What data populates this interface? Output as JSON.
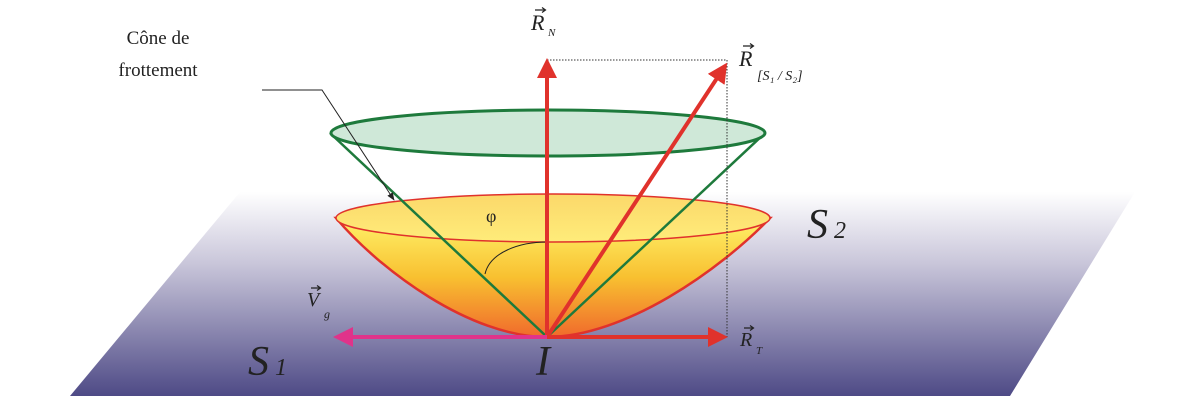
{
  "labels": {
    "cone_label_line1": "Cône de",
    "cone_label_line2": "frottement",
    "normal_force": "R",
    "normal_force_sub": "N",
    "resultant_force": "R",
    "resultant_force_sub": "[S₁ / S₂]",
    "tangential_force": "R",
    "tangential_force_sub": "T",
    "velocity": "V",
    "velocity_sub": "g",
    "angle": "φ",
    "solid_1": "S",
    "solid_1_sub": "1",
    "solid_2": "S",
    "solid_2_sub": "2",
    "contact_point": "I"
  },
  "colors": {
    "force_arrows": "#e0322c",
    "velocity_arrow": "#e0338a",
    "friction_cone": "#1e7a3c",
    "cone_fill": "#cfe8d8",
    "plane_bottom": "#4e4a86",
    "bowl_top": "#ffe84a",
    "bowl_bottom": "#f07030"
  }
}
